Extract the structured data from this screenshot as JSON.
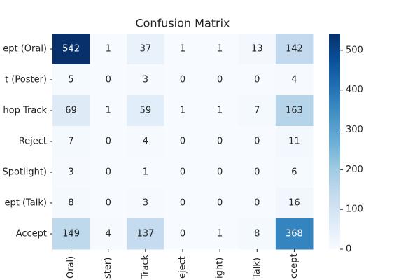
{
  "chart_data": {
    "type": "heatmap",
    "title": "Confusion Matrix",
    "row_labels": [
      "ept (Oral)",
      "t (Poster)",
      "hop Track",
      "Reject",
      "Spotlight)",
      "ept (Talk)",
      "Accept"
    ],
    "col_labels": [
      "Oral)",
      "ster)",
      "Track",
      "eject",
      "ight)",
      "Talk)",
      "ccept"
    ],
    "matrix": [
      [
        542,
        1,
        37,
        1,
        1,
        13,
        142
      ],
      [
        5,
        0,
        3,
        0,
        0,
        0,
        4
      ],
      [
        69,
        1,
        59,
        1,
        1,
        7,
        163
      ],
      [
        7,
        0,
        4,
        0,
        0,
        0,
        11
      ],
      [
        3,
        0,
        1,
        0,
        0,
        0,
        6
      ],
      [
        8,
        0,
        3,
        0,
        0,
        0,
        16
      ],
      [
        149,
        4,
        137,
        0,
        1,
        8,
        368
      ]
    ],
    "colormap": "Blues",
    "colorbar_lim": [
      0,
      542
    ],
    "colorbar_ticks": [
      0,
      100,
      200,
      300,
      400,
      500
    ]
  }
}
